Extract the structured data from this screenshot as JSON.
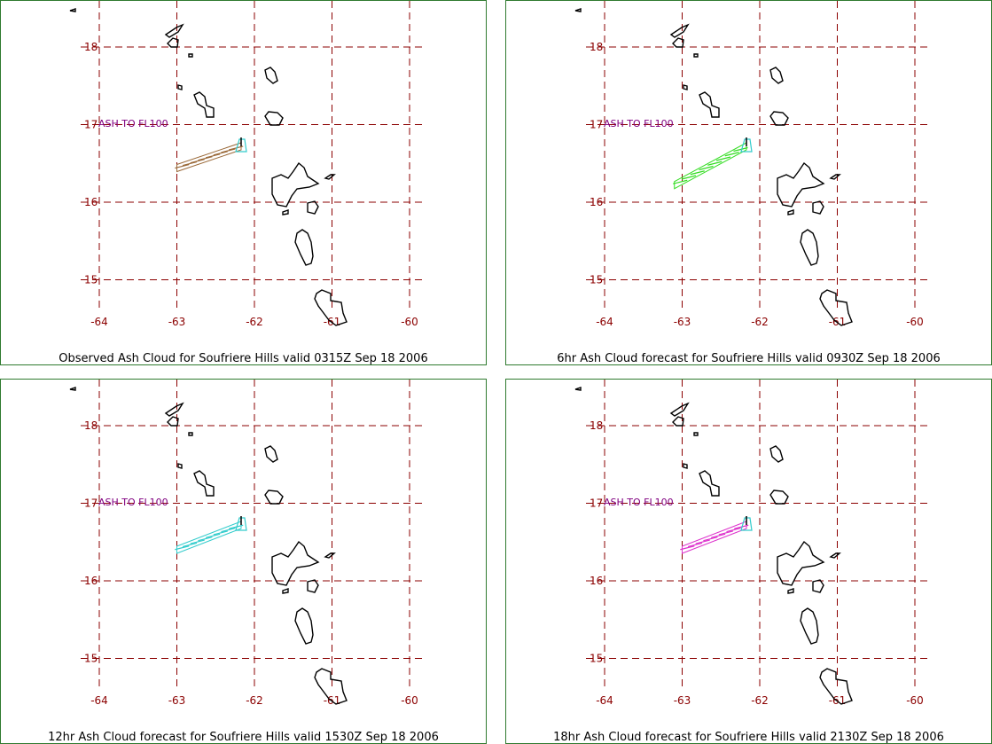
{
  "grid": {
    "longitudes": [
      "-64",
      "-63",
      "-62",
      "-61",
      "-60"
    ],
    "latitudes": [
      "18",
      "17",
      "16",
      "15"
    ],
    "grid_color": "#8b0000",
    "coast_color": "#000000"
  },
  "ash_label": "ASH TO FL100",
  "panels": [
    {
      "caption": "Observed Ash Cloud for Soufriere  Hills valid 0315Z Sep 18 2006",
      "cloud_color": "#9b6a3a",
      "cloud_lon_west": -63.0,
      "cloud_lat_west": 16.44
    },
    {
      "caption": "6hr Ash Cloud forecast for Soufriere  Hills valid 0930Z Sep 18 2006",
      "cloud_color": "#33dd22",
      "cloud_lon_west": -63.1,
      "cloud_lat_west": 16.22
    },
    {
      "caption": "12hr Ash Cloud forecast for Soufriere  Hills valid 1530Z Sep 18 2006",
      "cloud_color": "#33cccc",
      "cloud_lon_west": -63.0,
      "cloud_lat_west": 16.4
    },
    {
      "caption": "18hr Ash Cloud forecast for Soufriere  Hills valid 2130Z Sep 18 2006",
      "cloud_color": "#dd33cc",
      "cloud_lon_west": -63.0,
      "cloud_lat_west": 16.4
    }
  ],
  "source_marker_color": "#33cccc"
}
